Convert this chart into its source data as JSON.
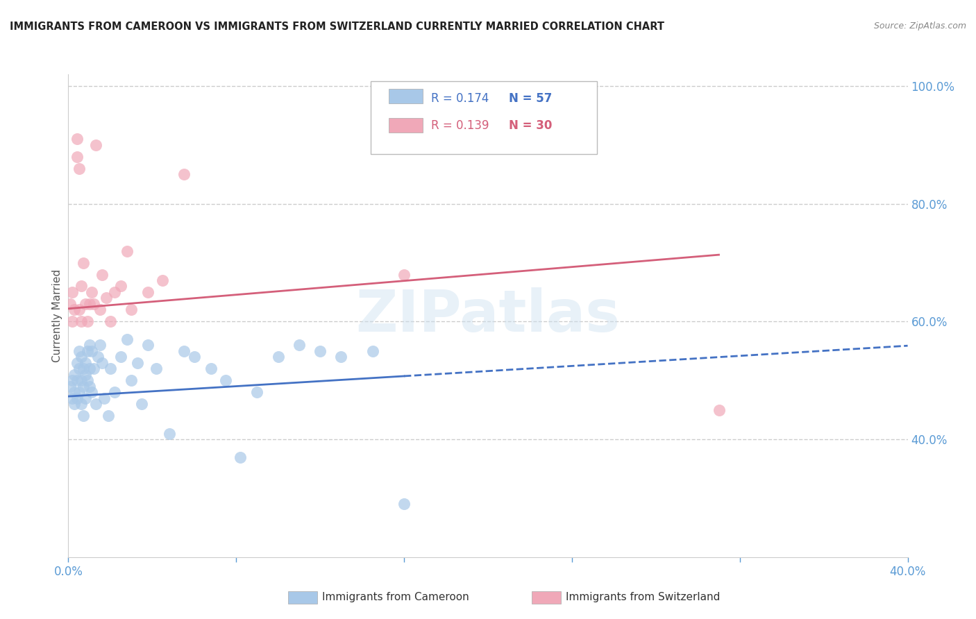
{
  "title": "IMMIGRANTS FROM CAMEROON VS IMMIGRANTS FROM SWITZERLAND CURRENTLY MARRIED CORRELATION CHART",
  "source": "Source: ZipAtlas.com",
  "ylabel": "Currently Married",
  "xlim": [
    0.0,
    0.4
  ],
  "ylim": [
    0.2,
    1.02
  ],
  "right_yticks": [
    0.4,
    0.6,
    0.8,
    1.0
  ],
  "right_yticklabels": [
    "40.0%",
    "60.0%",
    "80.0%",
    "100.0%"
  ],
  "xticks": [
    0.0,
    0.08,
    0.16,
    0.24,
    0.32,
    0.4
  ],
  "xticklabels": [
    "0.0%",
    "",
    "",
    "",
    "",
    "40.0%"
  ],
  "legend_r_cameroon": "R = 0.174",
  "legend_n_cameroon": "N = 57",
  "legend_r_switzerland": "R = 0.139",
  "legend_n_switzerland": "N = 30",
  "watermark": "ZIPatlas",
  "blue_color": "#a8c8e8",
  "pink_color": "#f0a8b8",
  "blue_line_color": "#4472c4",
  "pink_line_color": "#d45f7a",
  "axis_color": "#5b9bd5",
  "grid_color": "#cccccc",
  "cameroon_x": [
    0.001,
    0.002,
    0.002,
    0.003,
    0.003,
    0.003,
    0.004,
    0.004,
    0.004,
    0.005,
    0.005,
    0.005,
    0.006,
    0.006,
    0.006,
    0.007,
    0.007,
    0.007,
    0.008,
    0.008,
    0.008,
    0.009,
    0.009,
    0.01,
    0.01,
    0.01,
    0.011,
    0.011,
    0.012,
    0.013,
    0.014,
    0.015,
    0.016,
    0.017,
    0.019,
    0.02,
    0.022,
    0.025,
    0.028,
    0.03,
    0.033,
    0.035,
    0.038,
    0.042,
    0.048,
    0.055,
    0.06,
    0.068,
    0.075,
    0.082,
    0.09,
    0.1,
    0.11,
    0.12,
    0.13,
    0.145,
    0.16
  ],
  "cameroon_y": [
    0.49,
    0.5,
    0.47,
    0.48,
    0.51,
    0.46,
    0.5,
    0.53,
    0.47,
    0.52,
    0.55,
    0.48,
    0.54,
    0.5,
    0.46,
    0.52,
    0.49,
    0.44,
    0.53,
    0.51,
    0.47,
    0.55,
    0.5,
    0.56,
    0.52,
    0.49,
    0.55,
    0.48,
    0.52,
    0.46,
    0.54,
    0.56,
    0.53,
    0.47,
    0.44,
    0.52,
    0.48,
    0.54,
    0.57,
    0.5,
    0.53,
    0.46,
    0.56,
    0.52,
    0.41,
    0.55,
    0.54,
    0.52,
    0.5,
    0.37,
    0.48,
    0.54,
    0.56,
    0.55,
    0.54,
    0.55,
    0.29
  ],
  "switzerland_x": [
    0.001,
    0.002,
    0.002,
    0.003,
    0.004,
    0.004,
    0.005,
    0.005,
    0.006,
    0.006,
    0.007,
    0.008,
    0.009,
    0.01,
    0.011,
    0.012,
    0.013,
    0.015,
    0.016,
    0.018,
    0.02,
    0.022,
    0.025,
    0.028,
    0.03,
    0.038,
    0.045,
    0.055,
    0.16,
    0.31
  ],
  "switzerland_y": [
    0.63,
    0.65,
    0.6,
    0.62,
    0.91,
    0.88,
    0.86,
    0.62,
    0.66,
    0.6,
    0.7,
    0.63,
    0.6,
    0.63,
    0.65,
    0.63,
    0.9,
    0.62,
    0.68,
    0.64,
    0.6,
    0.65,
    0.66,
    0.72,
    0.62,
    0.65,
    0.67,
    0.85,
    0.68,
    0.45
  ],
  "cam_trend_x0": 0.0,
  "cam_trend_x_solid_end": 0.16,
  "cam_trend_x_dashed_end": 0.4,
  "cam_trend_y0": 0.473,
  "cam_trend_slope": 0.215,
  "swi_trend_x0": 0.0,
  "swi_trend_x_end": 0.31,
  "swi_trend_y0": 0.622,
  "swi_trend_slope": 0.295
}
